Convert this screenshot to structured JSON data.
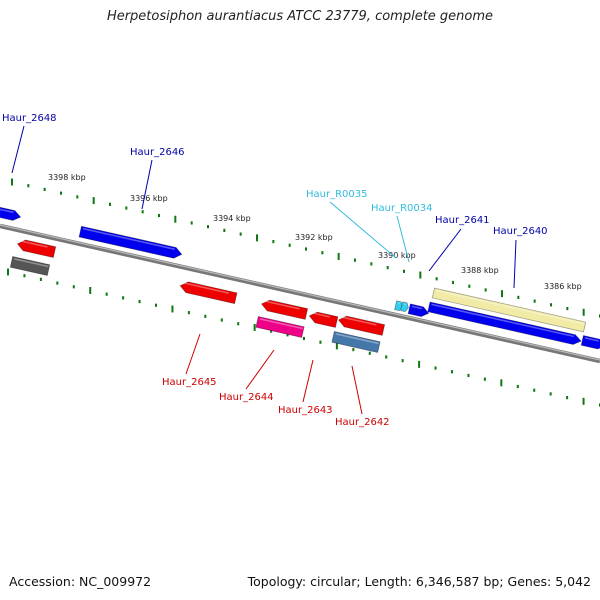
{
  "title": "Herpetosiphon aurantiacus ATCC 23779, complete genome",
  "footer": {
    "accession": "Accession: NC_009972",
    "stats": "Topology: circular; Length: 6,346,587 bp; Genes: 5,042"
  },
  "colors": {
    "plus_strand_gene": "#0000ee",
    "minus_strand_gene": "#ee0000",
    "pseudogene": "#ee0088",
    "trna": "#33ccee",
    "gc_track": "#555555",
    "ticks": "#117711",
    "region_highlight": "#f2eba6",
    "misc_feature": "#4477aa",
    "backbone": "#888888"
  },
  "tick_labels": [
    "3398 kbp",
    "3396 kbp",
    "3394 kbp",
    "3392 kbp",
    "3390 kbp",
    "3388 kbp",
    "3386 kbp"
  ],
  "gene_labels": [
    {
      "id": "Haur_2648",
      "color": "#0000aa"
    },
    {
      "id": "Haur_2646",
      "color": "#0000aa"
    },
    {
      "id": "Haur_R0035",
      "color": "#33bbdd"
    },
    {
      "id": "Haur_R0034",
      "color": "#33bbdd"
    },
    {
      "id": "Haur_2641",
      "color": "#0000aa"
    },
    {
      "id": "Haur_2640",
      "color": "#0000aa"
    },
    {
      "id": "Haur_2645",
      "color": "#cc0000"
    },
    {
      "id": "Haur_2644",
      "color": "#cc0000"
    },
    {
      "id": "Haur_2643",
      "color": "#cc0000"
    },
    {
      "id": "Haur_2642",
      "color": "#cc0000"
    }
  ]
}
